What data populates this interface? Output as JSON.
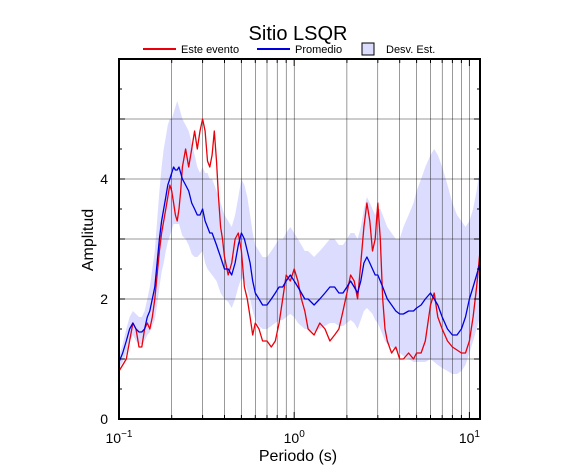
{
  "chart_data": {
    "type": "line",
    "title": "Sitio LSQR",
    "xlabel": "Periodo (s)",
    "ylabel": "Amplitud",
    "xscale": "log",
    "xlim": [
      0.1,
      11.5
    ],
    "ylim": [
      0,
      6
    ],
    "grid": true,
    "legend_position": "top",
    "x_ticks": [
      {
        "value": 0.1,
        "base": "10",
        "exp": "−1"
      },
      {
        "value": 1,
        "base": "10",
        "exp": "0"
      },
      {
        "value": 10,
        "base": "10",
        "exp": "1"
      }
    ],
    "y_ticks": [
      0,
      2,
      4
    ],
    "legend": {
      "event": "Este evento",
      "mean": "Promedio",
      "std": "Desv. Est."
    },
    "colors": {
      "event": "#e8000b",
      "mean": "#0000dd",
      "std_fill": "#dcdcff"
    },
    "series": [
      {
        "name": "Este evento",
        "x": [
          0.1,
          0.105,
          0.11,
          0.115,
          0.12,
          0.125,
          0.13,
          0.135,
          0.14,
          0.145,
          0.15,
          0.155,
          0.16,
          0.165,
          0.17,
          0.175,
          0.18,
          0.185,
          0.19,
          0.195,
          0.2,
          0.205,
          0.21,
          0.215,
          0.22,
          0.225,
          0.23,
          0.24,
          0.25,
          0.26,
          0.27,
          0.28,
          0.29,
          0.3,
          0.31,
          0.32,
          0.33,
          0.34,
          0.35,
          0.36,
          0.37,
          0.38,
          0.39,
          0.4,
          0.42,
          0.44,
          0.46,
          0.48,
          0.5,
          0.52,
          0.54,
          0.56,
          0.58,
          0.6,
          0.63,
          0.66,
          0.7,
          0.74,
          0.78,
          0.82,
          0.86,
          0.9,
          0.95,
          1.0,
          1.05,
          1.1,
          1.15,
          1.2,
          1.3,
          1.4,
          1.5,
          1.6,
          1.7,
          1.8,
          1.9,
          2.0,
          2.1,
          2.2,
          2.3,
          2.4,
          2.5,
          2.6,
          2.7,
          2.8,
          2.9,
          3.0,
          3.1,
          3.2,
          3.3,
          3.4,
          3.6,
          3.8,
          4.0,
          4.2,
          4.5,
          4.8,
          5.0,
          5.3,
          5.6,
          6.0,
          6.3,
          6.6,
          7.0,
          7.5,
          8.0,
          8.5,
          9.0,
          9.5,
          10.0,
          10.5,
          11.0,
          11.5
        ],
        "y": [
          0.8,
          0.9,
          1.0,
          1.3,
          1.6,
          1.5,
          1.2,
          1.2,
          1.5,
          1.6,
          1.5,
          1.7,
          2.0,
          2.4,
          2.8,
          3.1,
          3.3,
          3.5,
          3.7,
          3.9,
          3.8,
          3.6,
          3.4,
          3.3,
          3.5,
          3.8,
          4.2,
          4.5,
          4.2,
          4.5,
          4.8,
          4.5,
          4.8,
          5.0,
          4.8,
          4.3,
          4.2,
          4.4,
          4.8,
          4.3,
          3.7,
          3.2,
          3.0,
          2.7,
          2.4,
          2.6,
          3.0,
          3.1,
          2.8,
          2.2,
          2.0,
          1.7,
          1.4,
          1.6,
          1.5,
          1.3,
          1.3,
          1.2,
          1.3,
          1.6,
          2.0,
          2.4,
          2.3,
          2.5,
          2.3,
          2.0,
          1.8,
          1.5,
          1.4,
          1.6,
          1.5,
          1.3,
          1.4,
          1.5,
          1.8,
          2.1,
          2.4,
          2.3,
          2.0,
          2.6,
          3.2,
          3.6,
          3.3,
          2.8,
          3.0,
          3.6,
          3.0,
          2.0,
          1.5,
          1.3,
          1.1,
          1.2,
          1.0,
          1.0,
          1.1,
          1.0,
          1.1,
          1.1,
          1.3,
          1.9,
          2.1,
          1.7,
          1.5,
          1.3,
          1.2,
          1.15,
          1.1,
          1.1,
          1.3,
          1.7,
          2.2,
          2.8
        ]
      },
      {
        "name": "Promedio",
        "x": [
          0.1,
          0.105,
          0.11,
          0.115,
          0.12,
          0.125,
          0.13,
          0.135,
          0.14,
          0.145,
          0.15,
          0.155,
          0.16,
          0.165,
          0.17,
          0.175,
          0.18,
          0.185,
          0.19,
          0.195,
          0.2,
          0.205,
          0.21,
          0.215,
          0.22,
          0.225,
          0.23,
          0.24,
          0.25,
          0.26,
          0.27,
          0.28,
          0.29,
          0.3,
          0.31,
          0.32,
          0.33,
          0.34,
          0.35,
          0.36,
          0.37,
          0.38,
          0.39,
          0.4,
          0.42,
          0.44,
          0.46,
          0.48,
          0.5,
          0.52,
          0.54,
          0.56,
          0.58,
          0.6,
          0.63,
          0.66,
          0.7,
          0.74,
          0.78,
          0.82,
          0.86,
          0.9,
          0.95,
          1.0,
          1.05,
          1.1,
          1.15,
          1.2,
          1.3,
          1.4,
          1.5,
          1.6,
          1.7,
          1.8,
          1.9,
          2.0,
          2.1,
          2.2,
          2.3,
          2.4,
          2.5,
          2.6,
          2.7,
          2.8,
          2.9,
          3.0,
          3.1,
          3.2,
          3.3,
          3.4,
          3.6,
          3.8,
          4.0,
          4.2,
          4.5,
          4.8,
          5.0,
          5.3,
          5.6,
          6.0,
          6.3,
          6.6,
          7.0,
          7.5,
          8.0,
          8.5,
          9.0,
          9.5,
          10.0,
          10.5,
          11.0,
          11.5
        ],
        "y": [
          0.95,
          1.1,
          1.3,
          1.5,
          1.6,
          1.5,
          1.45,
          1.45,
          1.5,
          1.7,
          1.8,
          2.0,
          2.2,
          2.6,
          3.0,
          3.3,
          3.5,
          3.7,
          3.9,
          4.0,
          4.1,
          4.2,
          4.15,
          4.15,
          4.2,
          4.1,
          4.0,
          3.9,
          3.8,
          3.6,
          3.5,
          3.4,
          3.4,
          3.5,
          3.3,
          3.2,
          3.1,
          3.1,
          3.0,
          2.9,
          2.8,
          2.7,
          2.6,
          2.5,
          2.5,
          2.4,
          2.6,
          2.9,
          3.1,
          3.0,
          2.8,
          2.6,
          2.3,
          2.1,
          2.0,
          1.9,
          1.9,
          2.0,
          2.1,
          2.2,
          2.2,
          2.3,
          2.4,
          2.3,
          2.2,
          2.1,
          2.0,
          2.0,
          1.9,
          2.0,
          2.1,
          2.2,
          2.2,
          2.1,
          2.1,
          2.2,
          2.3,
          2.2,
          2.1,
          2.3,
          2.6,
          2.7,
          2.6,
          2.5,
          2.4,
          2.4,
          2.3,
          2.2,
          2.1,
          2.0,
          1.9,
          1.8,
          1.75,
          1.75,
          1.8,
          1.8,
          1.85,
          1.9,
          2.0,
          2.1,
          2.0,
          1.9,
          1.7,
          1.5,
          1.4,
          1.4,
          1.5,
          1.7,
          2.0,
          2.2,
          2.4,
          2.6
        ]
      },
      {
        "name": "Desv. Est.",
        "x": [
          0.1,
          0.105,
          0.11,
          0.115,
          0.12,
          0.125,
          0.13,
          0.135,
          0.14,
          0.145,
          0.15,
          0.155,
          0.16,
          0.165,
          0.17,
          0.175,
          0.18,
          0.185,
          0.19,
          0.195,
          0.2,
          0.205,
          0.21,
          0.215,
          0.22,
          0.225,
          0.23,
          0.24,
          0.25,
          0.26,
          0.27,
          0.28,
          0.29,
          0.3,
          0.31,
          0.32,
          0.33,
          0.34,
          0.35,
          0.36,
          0.37,
          0.38,
          0.39,
          0.4,
          0.42,
          0.44,
          0.46,
          0.48,
          0.5,
          0.52,
          0.54,
          0.56,
          0.58,
          0.6,
          0.63,
          0.66,
          0.7,
          0.74,
          0.78,
          0.82,
          0.86,
          0.9,
          0.95,
          1.0,
          1.05,
          1.1,
          1.15,
          1.2,
          1.3,
          1.4,
          1.5,
          1.6,
          1.7,
          1.8,
          1.9,
          2.0,
          2.1,
          2.2,
          2.3,
          2.4,
          2.5,
          2.6,
          2.7,
          2.8,
          2.9,
          3.0,
          3.1,
          3.2,
          3.3,
          3.4,
          3.6,
          3.8,
          4.0,
          4.2,
          4.5,
          4.8,
          5.0,
          5.3,
          5.6,
          6.0,
          6.3,
          6.6,
          7.0,
          7.5,
          8.0,
          8.5,
          9.0,
          9.5,
          10.0,
          10.5,
          11.0,
          11.5
        ],
        "upper": [
          1.05,
          1.25,
          1.5,
          1.7,
          1.8,
          1.75,
          1.7,
          1.7,
          1.8,
          2.0,
          2.2,
          2.5,
          2.8,
          3.3,
          3.8,
          4.2,
          4.5,
          4.7,
          4.9,
          5.0,
          5.0,
          5.1,
          5.2,
          5.3,
          5.2,
          5.1,
          5.0,
          4.9,
          4.8,
          4.6,
          4.4,
          4.2,
          4.1,
          4.2,
          4.1,
          4.1,
          4.0,
          4.0,
          3.9,
          3.8,
          3.7,
          3.6,
          3.5,
          3.4,
          3.3,
          3.2,
          3.4,
          3.7,
          4.0,
          3.9,
          3.7,
          3.4,
          3.1,
          2.9,
          2.8,
          2.7,
          2.7,
          2.8,
          2.9,
          3.0,
          3.0,
          3.1,
          3.2,
          3.1,
          3.0,
          2.9,
          2.8,
          2.8,
          2.7,
          2.8,
          2.9,
          3.0,
          3.0,
          2.9,
          2.9,
          3.0,
          3.1,
          3.1,
          3.0,
          3.2,
          3.5,
          3.7,
          3.6,
          3.5,
          3.4,
          3.5,
          3.5,
          3.4,
          3.3,
          3.2,
          3.1,
          3.0,
          3.0,
          3.2,
          3.4,
          3.6,
          3.8,
          4.0,
          4.2,
          4.4,
          4.5,
          4.4,
          4.2,
          3.9,
          3.6,
          3.4,
          3.3,
          3.2,
          3.3,
          3.5,
          3.8,
          4.2
        ],
        "lower": [
          0.85,
          0.95,
          1.1,
          1.3,
          1.4,
          1.3,
          1.25,
          1.25,
          1.3,
          1.4,
          1.45,
          1.55,
          1.65,
          1.9,
          2.2,
          2.45,
          2.6,
          2.8,
          2.95,
          3.05,
          3.15,
          3.25,
          3.25,
          3.25,
          3.25,
          3.15,
          3.05,
          3.0,
          2.9,
          2.75,
          2.7,
          2.7,
          2.75,
          2.8,
          2.6,
          2.5,
          2.45,
          2.4,
          2.35,
          2.3,
          2.2,
          2.1,
          2.05,
          2.0,
          1.95,
          1.85,
          2.0,
          2.2,
          2.35,
          2.3,
          2.15,
          2.0,
          1.8,
          1.65,
          1.55,
          1.5,
          1.5,
          1.55,
          1.6,
          1.65,
          1.65,
          1.7,
          1.75,
          1.7,
          1.6,
          1.55,
          1.5,
          1.5,
          1.45,
          1.5,
          1.55,
          1.6,
          1.6,
          1.55,
          1.55,
          1.6,
          1.65,
          1.6,
          1.5,
          1.65,
          1.8,
          1.85,
          1.8,
          1.75,
          1.65,
          1.6,
          1.5,
          1.4,
          1.3,
          1.25,
          1.2,
          1.15,
          1.1,
          1.05,
          1.0,
          0.95,
          0.95,
          0.95,
          0.95,
          1.0,
          0.95,
          0.9,
          0.85,
          0.8,
          0.75,
          0.75,
          0.8,
          0.9,
          1.1,
          1.3,
          1.5,
          1.7
        ]
      }
    ]
  }
}
